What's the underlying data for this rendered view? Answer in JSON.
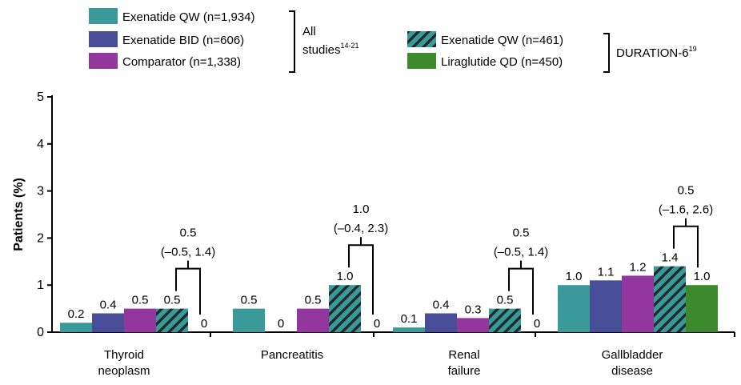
{
  "chart_data": {
    "type": "bar",
    "ylabel": "Patients (%)",
    "ylim": [
      0,
      5
    ],
    "yticks": [
      0,
      1,
      2,
      3,
      4,
      5
    ],
    "categories": [
      [
        "Thyroid",
        "neoplasm"
      ],
      [
        "Pancreatitis"
      ],
      [
        "Renal",
        "failure"
      ],
      [
        "Gallbladder",
        "disease"
      ]
    ],
    "series": [
      {
        "name": "Exenatide QW (n=1,934)",
        "color": "#3a9a9a",
        "pattern": "solid",
        "values": [
          0.2,
          0.5,
          0.1,
          1.0
        ],
        "labels": [
          "0.2",
          "0.5",
          "0.1",
          "1.0"
        ]
      },
      {
        "name": "Exenatide BID (n=606)",
        "color": "#474d96",
        "pattern": "solid",
        "values": [
          0.4,
          0,
          0.4,
          1.1
        ],
        "labels": [
          "0.4",
          "0",
          "0.4",
          "1.1"
        ]
      },
      {
        "name": "Comparator (n=1,338)",
        "color": "#93369d",
        "pattern": "solid",
        "values": [
          0.5,
          0.5,
          0.3,
          1.2
        ],
        "labels": [
          "0.5",
          "0.5",
          "0.3",
          "1.2"
        ]
      },
      {
        "name": "Exenatide QW (n=461)",
        "color": "#3a9a9a",
        "pattern": "hatched",
        "values": [
          0.5,
          1.0,
          0.5,
          1.4
        ],
        "labels": [
          "0.5",
          "1.0",
          "0.5",
          "1.4"
        ]
      },
      {
        "name": "Liraglutide QD (n=450)",
        "color": "#3c8a2c",
        "pattern": "solid",
        "values": [
          0,
          0,
          0,
          1.0
        ],
        "labels": [
          "0",
          "0",
          "0",
          "1.0"
        ]
      }
    ],
    "legend_groups": [
      {
        "label": "All",
        "label2": "studies",
        "sup": "14-21",
        "series": [
          0,
          1,
          2
        ]
      },
      {
        "label": "DURATION-6",
        "sup": "19",
        "series": [
          3,
          4
        ]
      }
    ],
    "comparisons": [
      {
        "category": 0,
        "diff": "0.5",
        "ci": "(–0.5, 1.4)"
      },
      {
        "category": 1,
        "diff": "1.0",
        "ci": "(–0.4, 2.3)"
      },
      {
        "category": 2,
        "diff": "0.5",
        "ci": "(–0.5, 1.4)"
      },
      {
        "category": 3,
        "diff": "0.5",
        "ci": "(–1.6, 2.6)"
      }
    ]
  }
}
